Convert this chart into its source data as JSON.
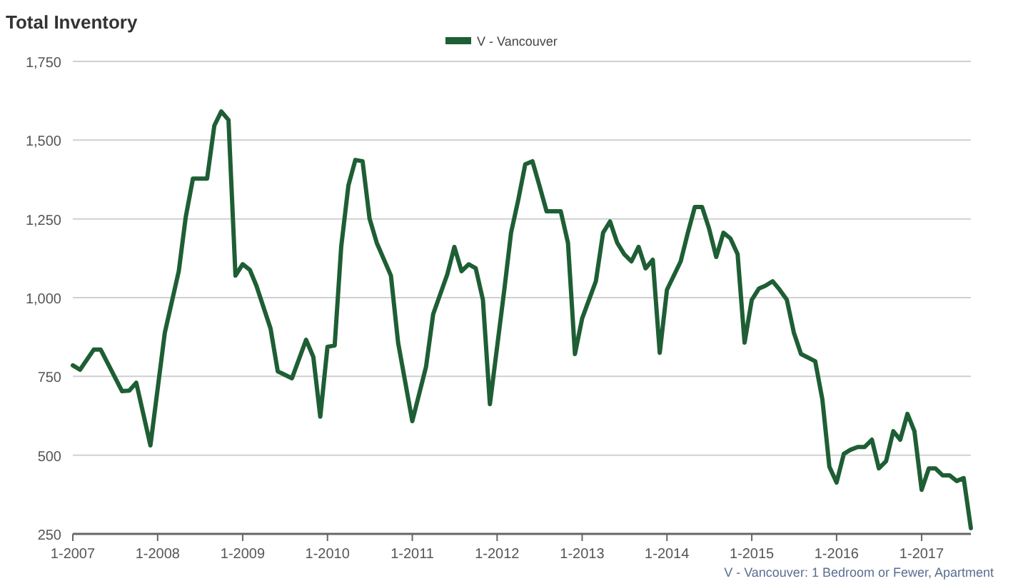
{
  "chart_data": {
    "type": "line",
    "title": "Total Inventory",
    "annotations": [
      "V - Vancouver: 1 Bedroom or Fewer, Apartment"
    ],
    "x": [
      "2007-01",
      "2007-02",
      "2007-04",
      "2007-05",
      "2007-08",
      "2007-09",
      "2007-10",
      "2007-12",
      "2008-02",
      "2008-04",
      "2008-05",
      "2008-06",
      "2008-08",
      "2008-09",
      "2008-10",
      "2008-11",
      "2008-12",
      "2009-01",
      "2009-02",
      "2009-03",
      "2009-05",
      "2009-06",
      "2009-08",
      "2009-10",
      "2009-11",
      "2009-12",
      "2010-01",
      "2010-02",
      "2010-03",
      "2010-04",
      "2010-05",
      "2010-06",
      "2010-07",
      "2010-08",
      "2010-10",
      "2010-11",
      "2011-01",
      "2011-03",
      "2011-04",
      "2011-06",
      "2011-07",
      "2011-08",
      "2011-09",
      "2011-10",
      "2011-11",
      "2011-12",
      "2012-02",
      "2012-03",
      "2012-04",
      "2012-05",
      "2012-06",
      "2012-07",
      "2012-08",
      "2012-10",
      "2012-11",
      "2012-12",
      "2013-01",
      "2013-03",
      "2013-04",
      "2013-05",
      "2013-06",
      "2013-07",
      "2013-08",
      "2013-09",
      "2013-10",
      "2013-11",
      "2013-12",
      "2014-01",
      "2014-03",
      "2014-04",
      "2014-05",
      "2014-06",
      "2014-07",
      "2014-08",
      "2014-09",
      "2014-10",
      "2014-11",
      "2014-12",
      "2015-01",
      "2015-02",
      "2015-03",
      "2015-04",
      "2015-05",
      "2015-06",
      "2015-07",
      "2015-08",
      "2015-10",
      "2015-11",
      "2015-12",
      "2016-01",
      "2016-02",
      "2016-03",
      "2016-04",
      "2016-05",
      "2016-06",
      "2016-07",
      "2016-08",
      "2016-09",
      "2016-10",
      "2016-11",
      "2016-12",
      "2017-01",
      "2017-02",
      "2017-03",
      "2017-04",
      "2017-05",
      "2017-06",
      "2017-07",
      "2017-08"
    ],
    "series": [
      {
        "name": "V - Vancouver",
        "color": "#1e5e34",
        "values": [
          785,
          771,
          835,
          835,
          703,
          705,
          730,
          531,
          889,
          1084,
          1256,
          1378,
          1378,
          1546,
          1591,
          1564,
          1070,
          1106,
          1088,
          1038,
          902,
          766,
          744,
          866,
          812,
          622,
          844,
          848,
          1161,
          1356,
          1437,
          1433,
          1251,
          1174,
          1070,
          857,
          608,
          780,
          948,
          1075,
          1161,
          1084,
          1106,
          1093,
          993,
          662,
          1025,
          1206,
          1310,
          1423,
          1433,
          1356,
          1274,
          1274,
          1174,
          821,
          934,
          1052,
          1206,
          1242,
          1174,
          1138,
          1115,
          1161,
          1093,
          1120,
          825,
          1025,
          1115,
          1206,
          1288,
          1288,
          1220,
          1129,
          1206,
          1188,
          1138,
          857,
          993,
          1029,
          1038,
          1052,
          1025,
          993,
          889,
          821,
          798,
          676,
          463,
          413,
          504,
          517,
          526,
          526,
          549,
          458,
          481,
          576,
          549,
          631,
          576,
          390,
          458,
          458,
          436,
          436,
          418,
          427,
          268
        ]
      }
    ],
    "xlim": [
      "2007-01",
      "2017-08"
    ],
    "xticks": [
      {
        "value": "2007-01",
        "label": "1-2007"
      },
      {
        "value": "2008-01",
        "label": "1-2008"
      },
      {
        "value": "2009-01",
        "label": "1-2009"
      },
      {
        "value": "2010-01",
        "label": "1-2010"
      },
      {
        "value": "2011-01",
        "label": "1-2011"
      },
      {
        "value": "2012-01",
        "label": "1-2012"
      },
      {
        "value": "2013-01",
        "label": "1-2013"
      },
      {
        "value": "2014-01",
        "label": "1-2014"
      },
      {
        "value": "2015-01",
        "label": "1-2015"
      },
      {
        "value": "2016-01",
        "label": "1-2016"
      },
      {
        "value": "2017-01",
        "label": "1-2017"
      }
    ],
    "ylim": [
      250,
      1750
    ],
    "yticks": [
      {
        "value": 250,
        "label": "250"
      },
      {
        "value": 500,
        "label": "500"
      },
      {
        "value": 750,
        "label": "750"
      },
      {
        "value": 1000,
        "label": "1,000"
      },
      {
        "value": 1250,
        "label": "1,250"
      },
      {
        "value": 1500,
        "label": "1,500"
      },
      {
        "value": 1750,
        "label": "1,750"
      }
    ],
    "grid": "y",
    "legend": "top",
    "marker": "none",
    "line_style": "solid"
  }
}
